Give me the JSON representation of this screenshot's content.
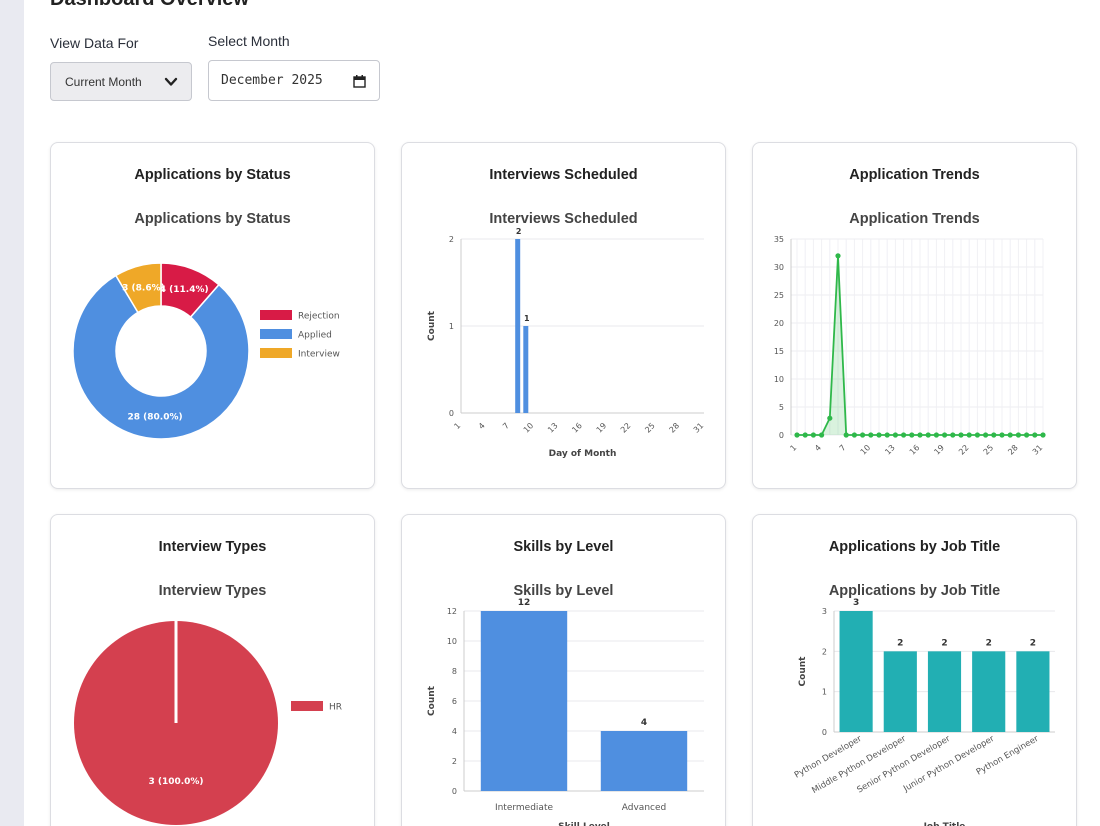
{
  "page": {
    "title": "Dashboard Overview"
  },
  "filters": {
    "view_label": "View Data For",
    "view_value": "Current Month",
    "month_label": "Select Month",
    "month_value": "December 2025"
  },
  "cards": {
    "status": {
      "title": "Applications by Status"
    },
    "interviews": {
      "title": "Interviews Scheduled"
    },
    "trends": {
      "title": "Application Trends"
    },
    "types": {
      "title": "Interview Types"
    },
    "skills": {
      "title": "Skills by Level"
    },
    "jobs": {
      "title": "Applications by Job Title"
    }
  },
  "colors": {
    "rejection": "#d81b46",
    "applied": "#4f8fe0",
    "interview": "#efa828",
    "hr": "#d4404f",
    "trend": "#2fb84a",
    "bars_blue": "#4f8fe0",
    "bars_teal": "#22afb3"
  },
  "chart_data": [
    {
      "id": "status",
      "type": "pie",
      "title": "Applications by Status",
      "slices": [
        {
          "name": "Rejection",
          "value": 4,
          "label": "4 (11.4%)"
        },
        {
          "name": "Applied",
          "value": 28,
          "label": "28 (80.0%)"
        },
        {
          "name": "Interview",
          "value": 3,
          "label": "3 (8.6%)"
        }
      ],
      "legend": "right"
    },
    {
      "id": "interviews",
      "type": "bar",
      "title": "Interviews Scheduled",
      "x": [
        1,
        2,
        3,
        4,
        5,
        6,
        7,
        8,
        9,
        10,
        11,
        12,
        13,
        14,
        15,
        16,
        17,
        18,
        19,
        20,
        21,
        22,
        23,
        24,
        25,
        26,
        27,
        28,
        29,
        30,
        31
      ],
      "x_ticks": [
        "1",
        "4",
        "7",
        "10",
        "13",
        "16",
        "19",
        "22",
        "25",
        "28",
        "31"
      ],
      "values": [
        0,
        0,
        0,
        0,
        0,
        0,
        0,
        2,
        1,
        0,
        0,
        0,
        0,
        0,
        0,
        0,
        0,
        0,
        0,
        0,
        0,
        0,
        0,
        0,
        0,
        0,
        0,
        0,
        0,
        0,
        0
      ],
      "data_labels": [
        {
          "x": 8,
          "text": "2"
        },
        {
          "x": 9,
          "text": "1"
        }
      ],
      "xlabel": "Day of Month",
      "ylabel": "Count",
      "ylim": [
        0,
        2
      ],
      "y_ticks": [
        "0",
        "1",
        "2"
      ]
    },
    {
      "id": "trends",
      "type": "area",
      "title": "Application Trends",
      "x": [
        1,
        2,
        3,
        4,
        5,
        6,
        7,
        8,
        9,
        10,
        11,
        12,
        13,
        14,
        15,
        16,
        17,
        18,
        19,
        20,
        21,
        22,
        23,
        24,
        25,
        26,
        27,
        28,
        29,
        30,
        31
      ],
      "x_ticks": [
        "1",
        "4",
        "7",
        "10",
        "13",
        "16",
        "19",
        "22",
        "25",
        "28",
        "31"
      ],
      "values": [
        0,
        0,
        0,
        0,
        3,
        32,
        0,
        0,
        0,
        0,
        0,
        0,
        0,
        0,
        0,
        0,
        0,
        0,
        0,
        0,
        0,
        0,
        0,
        0,
        0,
        0,
        0,
        0,
        0,
        0,
        0
      ],
      "ylim": [
        0,
        35
      ],
      "y_ticks": [
        "0",
        "5",
        "10",
        "15",
        "20",
        "25",
        "30",
        "35"
      ],
      "grid": true
    },
    {
      "id": "types",
      "type": "pie",
      "title": "Interview Types",
      "slices": [
        {
          "name": "HR",
          "value": 3,
          "label": "3 (100.0%)"
        }
      ],
      "legend": "right"
    },
    {
      "id": "skills",
      "type": "bar",
      "title": "Skills by Level",
      "categories": [
        "Intermediate",
        "Advanced"
      ],
      "values": [
        12,
        4
      ],
      "data_labels": [
        "12",
        "4"
      ],
      "xlabel": "Skill Level",
      "ylabel": "Count",
      "ylim": [
        0,
        12
      ],
      "y_ticks": [
        "0",
        "2",
        "4",
        "6",
        "8",
        "10",
        "12"
      ]
    },
    {
      "id": "jobs",
      "type": "bar",
      "title": "Applications by Job Title",
      "categories": [
        "Python Developer",
        "Middle Python Developer",
        "Senior Python Developer",
        "Junior Python Developer",
        "Python Engineer"
      ],
      "values": [
        3,
        2,
        2,
        2,
        2
      ],
      "data_labels": [
        "3",
        "2",
        "2",
        "2",
        "2"
      ],
      "xlabel": "Job Title",
      "ylabel": "Count",
      "ylim": [
        0,
        3
      ],
      "y_ticks": [
        "0",
        "1",
        "2",
        "3"
      ]
    }
  ]
}
